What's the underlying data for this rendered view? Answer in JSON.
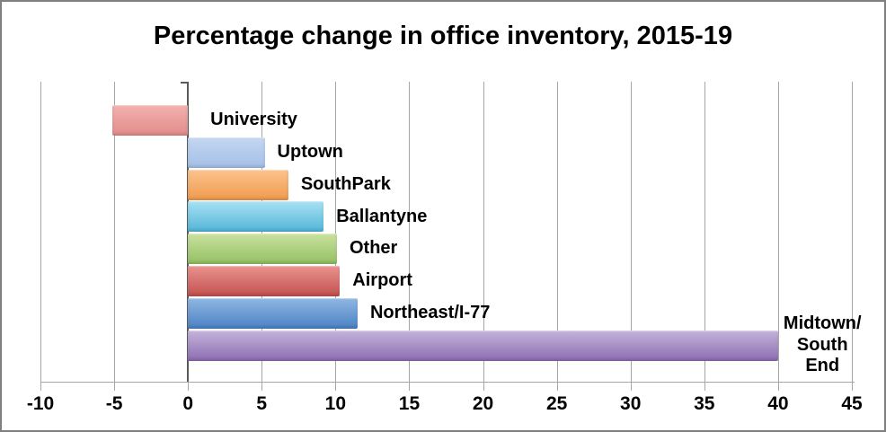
{
  "chart_data": {
    "type": "bar",
    "orientation": "horizontal",
    "title": "Percentage change in office inventory, 2015-19",
    "categories": [
      "University",
      "Uptown",
      "SouthPark",
      "Ballantyne",
      "Other",
      "Airport",
      "Northeast/I-77",
      "Midtown/\nSouth End"
    ],
    "values": [
      -5.1,
      5.2,
      6.8,
      9.2,
      10.1,
      10.3,
      11.5,
      40
    ],
    "bar_colors": [
      {
        "top": "#f3b1ae",
        "bottom": "#e18c8a"
      },
      {
        "top": "#c4d7f1",
        "bottom": "#a4bfe7"
      },
      {
        "top": "#fcc38d",
        "bottom": "#f09a4d"
      },
      {
        "top": "#a8e1f4",
        "bottom": "#51b5d8"
      },
      {
        "top": "#cae29f",
        "bottom": "#93bf63"
      },
      {
        "top": "#ea938f",
        "bottom": "#c2504e"
      },
      {
        "top": "#90b7e3",
        "bottom": "#4b81c3"
      },
      {
        "top": "#c5b4db",
        "bottom": "#8c6cb1"
      }
    ],
    "xlabel": "",
    "ylabel": "",
    "xlim": [
      -10,
      45
    ],
    "x_ticks": [
      -10,
      -5,
      0,
      5,
      10,
      15,
      20,
      25,
      30,
      35,
      40,
      45
    ],
    "grid": "vertical-on",
    "legend": "none",
    "colors": {
      "gridline": "#a6a6a6",
      "zero_axis": "#595959",
      "axis_line": "#a6a6a6",
      "text": "#000000",
      "frame_border": "#7f7f7f",
      "background": "#ffffff"
    }
  }
}
